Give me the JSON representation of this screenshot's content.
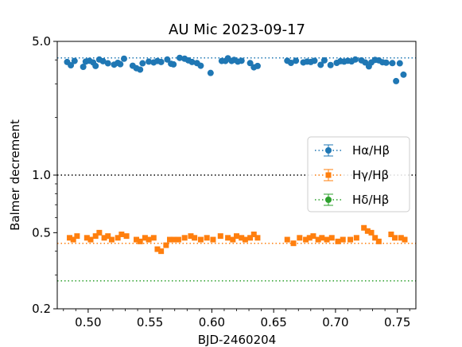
{
  "chart_data": {
    "type": "scatter",
    "title": "AU Mic 2023-09-17",
    "xlabel": "BJD-2460204",
    "ylabel": "Balmer decrement",
    "xlim": [
      0.475,
      0.765
    ],
    "ylim": [
      0.2,
      5.0
    ],
    "yscale": "log",
    "grid": false,
    "legend_position": "right",
    "x_ticks": [
      "0.50",
      "0.55",
      "0.60",
      "0.65",
      "0.70",
      "0.75"
    ],
    "x_tick_values": [
      0.5,
      0.55,
      0.6,
      0.65,
      0.7,
      0.75
    ],
    "y_ticks": [
      "0.2",
      "0.5",
      "1.0",
      "5.0"
    ],
    "y_tick_values": [
      0.2,
      0.5,
      1.0,
      5.0
    ],
    "reference_lines": [
      {
        "y": 4.1,
        "color": "#1f77b4",
        "style": "dotted"
      },
      {
        "y": 1.0,
        "color": "#000000",
        "style": "dotted"
      },
      {
        "y": 0.44,
        "color": "#ff7f0e",
        "style": "dotted"
      },
      {
        "y": 0.28,
        "color": "#2ca02c",
        "style": "dotted"
      }
    ],
    "series": [
      {
        "name": "Hα/Hβ",
        "color": "#1f77b4",
        "marker": "circle",
        "x": [
          0.483,
          0.486,
          0.489,
          0.496,
          0.498,
          0.501,
          0.504,
          0.506,
          0.509,
          0.512,
          0.516,
          0.521,
          0.524,
          0.526,
          0.529,
          0.536,
          0.539,
          0.542,
          0.544,
          0.549,
          0.553,
          0.556,
          0.559,
          0.564,
          0.567,
          0.569,
          0.574,
          0.578,
          0.581,
          0.584,
          0.588,
          0.591,
          0.599,
          0.608,
          0.611,
          0.613,
          0.616,
          0.618,
          0.621,
          0.624,
          0.631,
          0.634,
          0.637,
          0.661,
          0.664,
          0.668,
          0.674,
          0.677,
          0.68,
          0.683,
          0.688,
          0.691,
          0.696,
          0.701,
          0.704,
          0.707,
          0.71,
          0.713,
          0.716,
          0.721,
          0.724,
          0.727,
          0.729,
          0.732,
          0.735,
          0.738,
          0.741,
          0.746,
          0.749,
          0.752,
          0.755
        ],
        "y": [
          3.9,
          3.75,
          3.95,
          3.68,
          3.92,
          3.96,
          3.88,
          3.72,
          4.02,
          3.94,
          3.84,
          3.78,
          3.86,
          3.8,
          4.06,
          3.73,
          3.62,
          3.56,
          3.84,
          3.92,
          3.88,
          3.95,
          3.9,
          4.02,
          3.82,
          3.79,
          4.1,
          4.06,
          3.98,
          3.9,
          3.85,
          3.73,
          3.42,
          3.95,
          3.95,
          4.08,
          3.95,
          4.0,
          3.92,
          3.96,
          3.85,
          3.66,
          3.72,
          3.96,
          3.86,
          3.96,
          3.88,
          3.92,
          3.9,
          3.96,
          3.77,
          3.98,
          3.76,
          3.86,
          3.94,
          3.92,
          3.96,
          3.93,
          4.02,
          3.98,
          3.88,
          3.7,
          3.88,
          4.0,
          3.98,
          3.89,
          3.87,
          3.85,
          3.1,
          3.84,
          3.35
        ],
        "yerr": 0.05
      },
      {
        "name": "Hγ/Hβ",
        "color": "#ff7f0e",
        "marker": "square",
        "x": [
          0.485,
          0.488,
          0.491,
          0.499,
          0.502,
          0.506,
          0.509,
          0.513,
          0.516,
          0.519,
          0.524,
          0.527,
          0.531,
          0.539,
          0.542,
          0.546,
          0.549,
          0.553,
          0.556,
          0.559,
          0.563,
          0.566,
          0.569,
          0.573,
          0.578,
          0.583,
          0.586,
          0.591,
          0.596,
          0.601,
          0.607,
          0.613,
          0.617,
          0.62,
          0.624,
          0.627,
          0.631,
          0.634,
          0.637,
          0.661,
          0.666,
          0.671,
          0.676,
          0.679,
          0.682,
          0.686,
          0.689,
          0.693,
          0.697,
          0.702,
          0.706,
          0.712,
          0.717,
          0.723,
          0.726,
          0.729,
          0.732,
          0.735,
          0.745,
          0.748,
          0.753,
          0.756
        ],
        "y": [
          0.47,
          0.46,
          0.48,
          0.47,
          0.46,
          0.48,
          0.5,
          0.47,
          0.48,
          0.46,
          0.47,
          0.49,
          0.48,
          0.46,
          0.45,
          0.47,
          0.46,
          0.47,
          0.41,
          0.4,
          0.43,
          0.46,
          0.46,
          0.46,
          0.47,
          0.48,
          0.47,
          0.46,
          0.47,
          0.46,
          0.48,
          0.47,
          0.46,
          0.48,
          0.47,
          0.46,
          0.47,
          0.49,
          0.47,
          0.46,
          0.44,
          0.47,
          0.46,
          0.47,
          0.48,
          0.46,
          0.47,
          0.46,
          0.47,
          0.45,
          0.46,
          0.46,
          0.47,
          0.53,
          0.51,
          0.5,
          0.47,
          0.45,
          0.49,
          0.47,
          0.47,
          0.46
        ],
        "yerr": 0.008
      },
      {
        "name": "Hδ/Hβ",
        "color": "#2ca02c",
        "marker": "circle",
        "x": [],
        "y": []
      }
    ]
  }
}
